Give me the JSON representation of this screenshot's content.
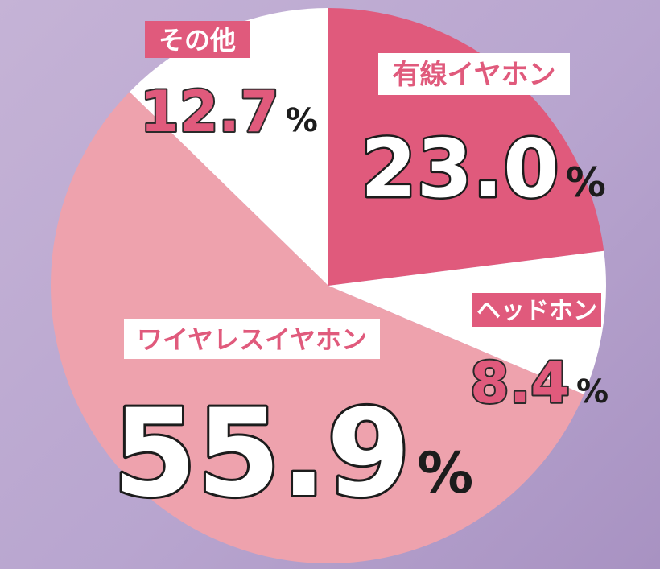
{
  "chart_data": {
    "type": "pie",
    "slices": [
      {
        "label": "有線イヤホン",
        "value": 23.0,
        "display": "23.0",
        "unit": "%",
        "color": "#e05a7c"
      },
      {
        "label": "ヘッドホン",
        "value": 8.4,
        "display": "8.4",
        "unit": "%",
        "color": "#ffffff"
      },
      {
        "label": "ワイヤレスイヤホン",
        "value": 55.9,
        "display": "55.9",
        "unit": "%",
        "color": "#eea2ad"
      },
      {
        "label": "その他",
        "value": 12.7,
        "display": "12.7",
        "unit": "%",
        "color": "#ffffff"
      }
    ],
    "start": "top, clockwise",
    "legend": "none",
    "label_accent": "#e05a7c"
  }
}
